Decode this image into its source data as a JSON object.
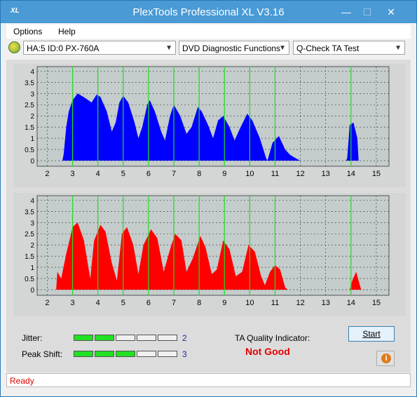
{
  "window": {
    "title": "PlexTools Professional XL V3.16",
    "icon_text": "XL",
    "min": "—",
    "max": "☐",
    "close": "✕"
  },
  "menu": {
    "items": [
      "Options",
      "Help"
    ]
  },
  "toolbar": {
    "drive": "HA:5 ID:0  PX-760A",
    "function": "DVD Diagnostic Functions",
    "test": "Q-Check TA Test"
  },
  "colors": {
    "top_series": "#0000ff",
    "bottom_series": "#ff0000",
    "marker_lines": "#22dd22",
    "plot_bg": "#c4cccc"
  },
  "chart_data": [
    {
      "type": "area",
      "series": [
        {
          "color": "#0000ff"
        }
      ],
      "xlim": [
        1.6,
        15.5
      ],
      "ylim": [
        -0.25,
        4.2
      ],
      "x_ticks": [
        "2",
        "3",
        "4",
        "5",
        "6",
        "7",
        "8",
        "9",
        "10",
        "11",
        "12",
        "13",
        "14",
        "15"
      ],
      "y_ticks": [
        "0",
        "0.5",
        "1",
        "1.5",
        "2",
        "2.5",
        "3",
        "3.5",
        "4"
      ],
      "marker_lines": [
        3,
        4,
        5,
        6,
        7,
        8,
        9,
        10,
        11,
        14
      ],
      "points": [
        [
          2.6,
          0
        ],
        [
          2.65,
          0.3
        ],
        [
          2.75,
          1.5
        ],
        [
          2.85,
          2.2
        ],
        [
          3.0,
          2.7
        ],
        [
          3.2,
          3.0
        ],
        [
          3.5,
          2.8
        ],
        [
          3.75,
          2.6
        ],
        [
          3.95,
          2.95
        ],
        [
          4.1,
          2.85
        ],
        [
          4.35,
          2.2
        ],
        [
          4.55,
          1.3
        ],
        [
          4.7,
          1.7
        ],
        [
          4.85,
          2.6
        ],
        [
          5.0,
          2.9
        ],
        [
          5.2,
          2.6
        ],
        [
          5.45,
          1.7
        ],
        [
          5.6,
          1.0
        ],
        [
          5.75,
          1.5
        ],
        [
          5.95,
          2.5
        ],
        [
          6.05,
          2.7
        ],
        [
          6.25,
          2.2
        ],
        [
          6.5,
          1.3
        ],
        [
          6.65,
          0.9
        ],
        [
          6.85,
          2.0
        ],
        [
          7.0,
          2.5
        ],
        [
          7.25,
          2.0
        ],
        [
          7.5,
          1.2
        ],
        [
          7.7,
          1.5
        ],
        [
          7.95,
          2.4
        ],
        [
          8.1,
          2.2
        ],
        [
          8.35,
          1.6
        ],
        [
          8.55,
          1.0
        ],
        [
          8.75,
          1.8
        ],
        [
          8.95,
          2.0
        ],
        [
          9.2,
          1.5
        ],
        [
          9.4,
          0.9
        ],
        [
          9.6,
          1.4
        ],
        [
          9.9,
          2.1
        ],
        [
          10.1,
          1.8
        ],
        [
          10.4,
          1.0
        ],
        [
          10.65,
          0.1
        ],
        [
          10.7,
          0
        ],
        [
          10.9,
          0.8
        ],
        [
          11.15,
          1.1
        ],
        [
          11.4,
          0.5
        ],
        [
          11.6,
          0.25
        ],
        [
          11.9,
          0.05
        ],
        [
          12.0,
          0
        ],
        [
          13.8,
          0
        ],
        [
          13.85,
          0.1
        ],
        [
          13.95,
          1.6
        ],
        [
          14.1,
          1.7
        ],
        [
          14.25,
          1.0
        ],
        [
          14.3,
          0
        ]
      ]
    },
    {
      "type": "area",
      "series": [
        {
          "color": "#ff0000"
        }
      ],
      "xlim": [
        1.6,
        15.5
      ],
      "ylim": [
        -0.25,
        4.2
      ],
      "x_ticks": [
        "2",
        "3",
        "4",
        "5",
        "6",
        "7",
        "8",
        "9",
        "10",
        "11",
        "12",
        "13",
        "14",
        "15"
      ],
      "y_ticks": [
        "0",
        "0.5",
        "1",
        "1.5",
        "2",
        "2.5",
        "3",
        "3.5",
        "4"
      ],
      "marker_lines": [
        3,
        4,
        5,
        6,
        7,
        8,
        9,
        10,
        11,
        14
      ],
      "points": [
        [
          2.35,
          0
        ],
        [
          2.4,
          0.8
        ],
        [
          2.55,
          0.5
        ],
        [
          2.75,
          1.6
        ],
        [
          3.0,
          2.8
        ],
        [
          3.2,
          3.0
        ],
        [
          3.45,
          2.2
        ],
        [
          3.7,
          0.5
        ],
        [
          3.85,
          2.2
        ],
        [
          4.1,
          2.9
        ],
        [
          4.3,
          2.6
        ],
        [
          4.55,
          1.2
        ],
        [
          4.75,
          0.4
        ],
        [
          4.95,
          2.5
        ],
        [
          5.15,
          2.8
        ],
        [
          5.4,
          2.0
        ],
        [
          5.6,
          0.7
        ],
        [
          5.8,
          2.0
        ],
        [
          6.1,
          2.7
        ],
        [
          6.35,
          2.3
        ],
        [
          6.6,
          0.8
        ],
        [
          6.85,
          1.8
        ],
        [
          7.05,
          2.5
        ],
        [
          7.3,
          2.2
        ],
        [
          7.5,
          0.8
        ],
        [
          7.75,
          1.4
        ],
        [
          8.05,
          2.4
        ],
        [
          8.25,
          1.9
        ],
        [
          8.5,
          0.7
        ],
        [
          8.7,
          0.9
        ],
        [
          8.95,
          2.2
        ],
        [
          9.2,
          1.8
        ],
        [
          9.45,
          0.6
        ],
        [
          9.7,
          0.8
        ],
        [
          9.95,
          2.0
        ],
        [
          10.2,
          1.7
        ],
        [
          10.45,
          0.6
        ],
        [
          10.6,
          0.2
        ],
        [
          10.8,
          0.8
        ],
        [
          11.0,
          1.1
        ],
        [
          11.2,
          0.9
        ],
        [
          11.4,
          0.1
        ],
        [
          11.5,
          0
        ],
        [
          13.95,
          0
        ],
        [
          14.05,
          0.4
        ],
        [
          14.2,
          0.8
        ],
        [
          14.35,
          0.2
        ],
        [
          14.4,
          0
        ]
      ]
    }
  ],
  "bottom": {
    "jitter_label": "Jitter:",
    "jitter_value": "2",
    "jitter_level": 2,
    "peak_label": "Peak Shift:",
    "peak_value": "3",
    "peak_level": 3,
    "segments": 5,
    "ta_label": "TA Quality Indicator:",
    "ta_value": "Not Good",
    "start_label": "Start",
    "info_glyph": "i"
  },
  "status": {
    "text": "Ready"
  }
}
